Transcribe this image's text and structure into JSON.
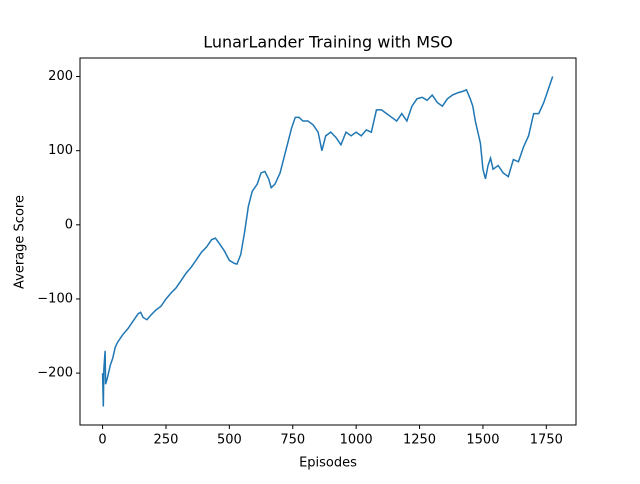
{
  "chart_data": {
    "type": "line",
    "title": "LunarLander Training with MSO",
    "xlabel": "Episodes",
    "ylabel": "Average Score",
    "x": [
      0,
      3,
      5,
      10,
      12,
      20,
      30,
      40,
      50,
      60,
      80,
      100,
      120,
      140,
      150,
      160,
      175,
      190,
      210,
      230,
      250,
      270,
      290,
      310,
      330,
      350,
      370,
      390,
      410,
      430,
      445,
      460,
      480,
      500,
      520,
      530,
      545,
      560,
      575,
      590,
      610,
      625,
      640,
      655,
      665,
      680,
      700,
      715,
      730,
      745,
      760,
      775,
      790,
      810,
      830,
      850,
      865,
      880,
      900,
      920,
      940,
      960,
      980,
      1000,
      1020,
      1040,
      1060,
      1080,
      1100,
      1120,
      1140,
      1160,
      1180,
      1200,
      1220,
      1240,
      1260,
      1280,
      1300,
      1320,
      1340,
      1360,
      1380,
      1400,
      1420,
      1435,
      1450,
      1460,
      1470,
      1480,
      1490,
      1500,
      1510,
      1520,
      1530,
      1540,
      1560,
      1580,
      1600,
      1620,
      1640,
      1660,
      1680,
      1700,
      1720,
      1740,
      1760,
      1775
    ],
    "series": [
      {
        "name": "Average Score",
        "color": "#1f77b4",
        "values": [
          -200,
          -245,
          -195,
          -170,
          -215,
          -205,
          -190,
          -180,
          -165,
          -158,
          -148,
          -140,
          -130,
          -120,
          -118,
          -125,
          -128,
          -122,
          -115,
          -110,
          -100,
          -92,
          -85,
          -75,
          -65,
          -57,
          -47,
          -37,
          -30,
          -20,
          -18,
          -25,
          -35,
          -48,
          -52,
          -53,
          -40,
          -10,
          25,
          45,
          55,
          70,
          72,
          62,
          50,
          55,
          70,
          90,
          110,
          130,
          145,
          145,
          140,
          140,
          135,
          125,
          100,
          120,
          125,
          118,
          108,
          125,
          120,
          125,
          120,
          128,
          125,
          155,
          155,
          150,
          145,
          140,
          150,
          140,
          160,
          170,
          172,
          168,
          175,
          165,
          160,
          170,
          175,
          178,
          180,
          182,
          170,
          160,
          140,
          125,
          110,
          75,
          62,
          80,
          90,
          75,
          80,
          70,
          65,
          88,
          85,
          105,
          120,
          150,
          150,
          165,
          185,
          200
        ]
      }
    ],
    "xlim": [
      -89,
      1867
    ],
    "ylim": [
      -270,
      225
    ],
    "xticks": [
      0,
      250,
      500,
      750,
      1000,
      1250,
      1500,
      1750
    ],
    "yticks": [
      {
        "value": -200,
        "label": "−200"
      },
      {
        "value": -100,
        "label": "−100"
      },
      0,
      100,
      200
    ]
  }
}
